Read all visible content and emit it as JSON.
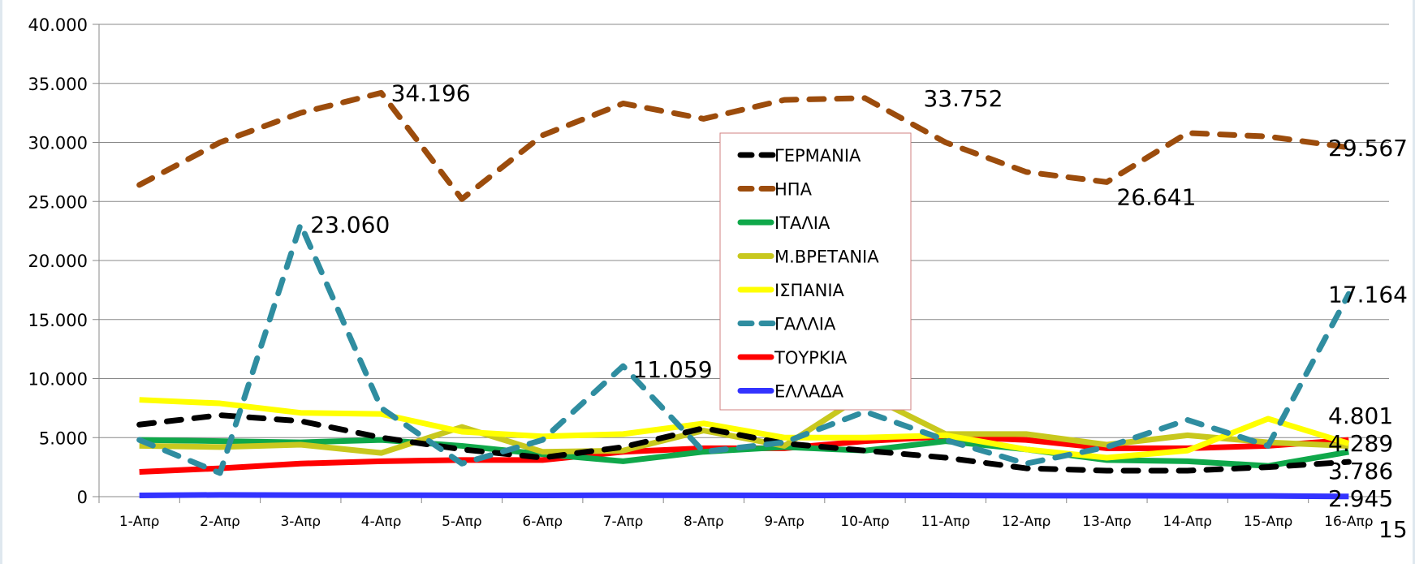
{
  "chart_data": {
    "type": "line",
    "title": "",
    "xlabel": "",
    "ylabel": "",
    "ylim": [
      0,
      40000
    ],
    "yticks": [
      0,
      5000,
      10000,
      15000,
      20000,
      25000,
      30000,
      35000,
      40000
    ],
    "ytick_labels": [
      "0",
      "5.000",
      "10.000",
      "15.000",
      "20.000",
      "25.000",
      "30.000",
      "35.000",
      "40.000"
    ],
    "grid": true,
    "legend_position": "center-right",
    "categories": [
      "1-Απρ",
      "2-Απρ",
      "3-Απρ",
      "4-Απρ",
      "5-Απρ",
      "6-Απρ",
      "7-Απρ",
      "8-Απρ",
      "9-Απρ",
      "10-Απρ",
      "11-Απρ",
      "12-Απρ",
      "13-Απρ",
      "14-Απρ",
      "15-Απρ",
      "16-Απρ"
    ],
    "series": [
      {
        "name": "ΓΕΡΜΑΝΙΑ",
        "color": "#000000",
        "dashed": true,
        "values": [
          6100,
          6900,
          6400,
          5000,
          4000,
          3300,
          4200,
          5800,
          4500,
          3900,
          3300,
          2400,
          2200,
          2200,
          2500,
          2945
        ]
      },
      {
        "name": "ΗΠΑ",
        "color": "#9c4c0c",
        "dashed": true,
        "values": [
          26400,
          30000,
          32500,
          34196,
          25200,
          30600,
          33300,
          32000,
          33600,
          33752,
          30000,
          27500,
          26641,
          30800,
          30500,
          29567
        ]
      },
      {
        "name": "ΙΤΑΛΙΑ",
        "color": "#0fa84a",
        "dashed": false,
        "values": [
          4800,
          4700,
          4600,
          4800,
          4300,
          3600,
          3000,
          3800,
          4200,
          3900,
          4700,
          4000,
          3100,
          3000,
          2600,
          3786
        ]
      },
      {
        "name": "Μ.ΒΡΕΤΑΝΙΑ",
        "color": "#c8c81e",
        "dashed": false,
        "values": [
          4300,
          4200,
          4400,
          3700,
          5900,
          3800,
          3900,
          5600,
          4300,
          8700,
          5300,
          5300,
          4400,
          5200,
          4600,
          4289
        ]
      },
      {
        "name": "ΙΣΠΑΝΙΑ",
        "color": "#ffff00",
        "dashed": false,
        "values": [
          8200,
          7900,
          7100,
          7000,
          5500,
          5100,
          5300,
          6200,
          5000,
          5000,
          5200,
          4000,
          3300,
          3900,
          6600,
          4500
        ]
      },
      {
        "name": "ΓΑΛΛΙΑ",
        "color": "#2f8da0",
        "dashed": true,
        "values": [
          4800,
          2000,
          23060,
          7500,
          2800,
          4800,
          11059,
          3800,
          4600,
          7200,
          4800,
          2800,
          4200,
          6500,
          4300,
          17164
        ]
      },
      {
        "name": "ΤΟΥΡΚΙΑ",
        "color": "#ff0000",
        "dashed": false,
        "values": [
          2100,
          2400,
          2800,
          3000,
          3100,
          3100,
          3800,
          4100,
          4100,
          4700,
          5100,
          4800,
          4100,
          4100,
          4300,
          4801
        ]
      },
      {
        "name": "ΕΛΛΑΔΑ",
        "color": "#3333ff",
        "dashed": false,
        "values": [
          100,
          150,
          130,
          120,
          110,
          100,
          120,
          110,
          100,
          110,
          100,
          90,
          80,
          70,
          60,
          15
        ]
      }
    ],
    "annotations": [
      {
        "series": "ΗΠΑ",
        "index": 3,
        "text": "34.196"
      },
      {
        "series": "ΗΠΑ",
        "index": 9,
        "text": "33.752"
      },
      {
        "series": "ΗΠΑ",
        "index": 12,
        "text": "26.641"
      },
      {
        "series": "ΗΠΑ",
        "index": 15,
        "text": "29.567"
      },
      {
        "series": "ΓΑΛΛΙΑ",
        "index": 2,
        "text": "23.060"
      },
      {
        "series": "ΓΑΛΛΙΑ",
        "index": 6,
        "text": "11.059"
      },
      {
        "series": "ΓΑΛΛΙΑ",
        "index": 15,
        "text": "17.164"
      },
      {
        "series": "ΤΟΥΡΚΙΑ",
        "index": 15,
        "text": "4.801"
      },
      {
        "series": "Μ.ΒΡΕΤΑΝΙΑ",
        "index": 15,
        "text": "4.289"
      },
      {
        "series": "ΙΤΑΛΙΑ",
        "index": 15,
        "text": "3.786"
      },
      {
        "series": "ΓΕΡΜΑΝΙΑ",
        "index": 15,
        "text": "2.945"
      },
      {
        "series": "ΕΛΛΑΔΑ",
        "index": 15,
        "text": "15"
      }
    ]
  }
}
